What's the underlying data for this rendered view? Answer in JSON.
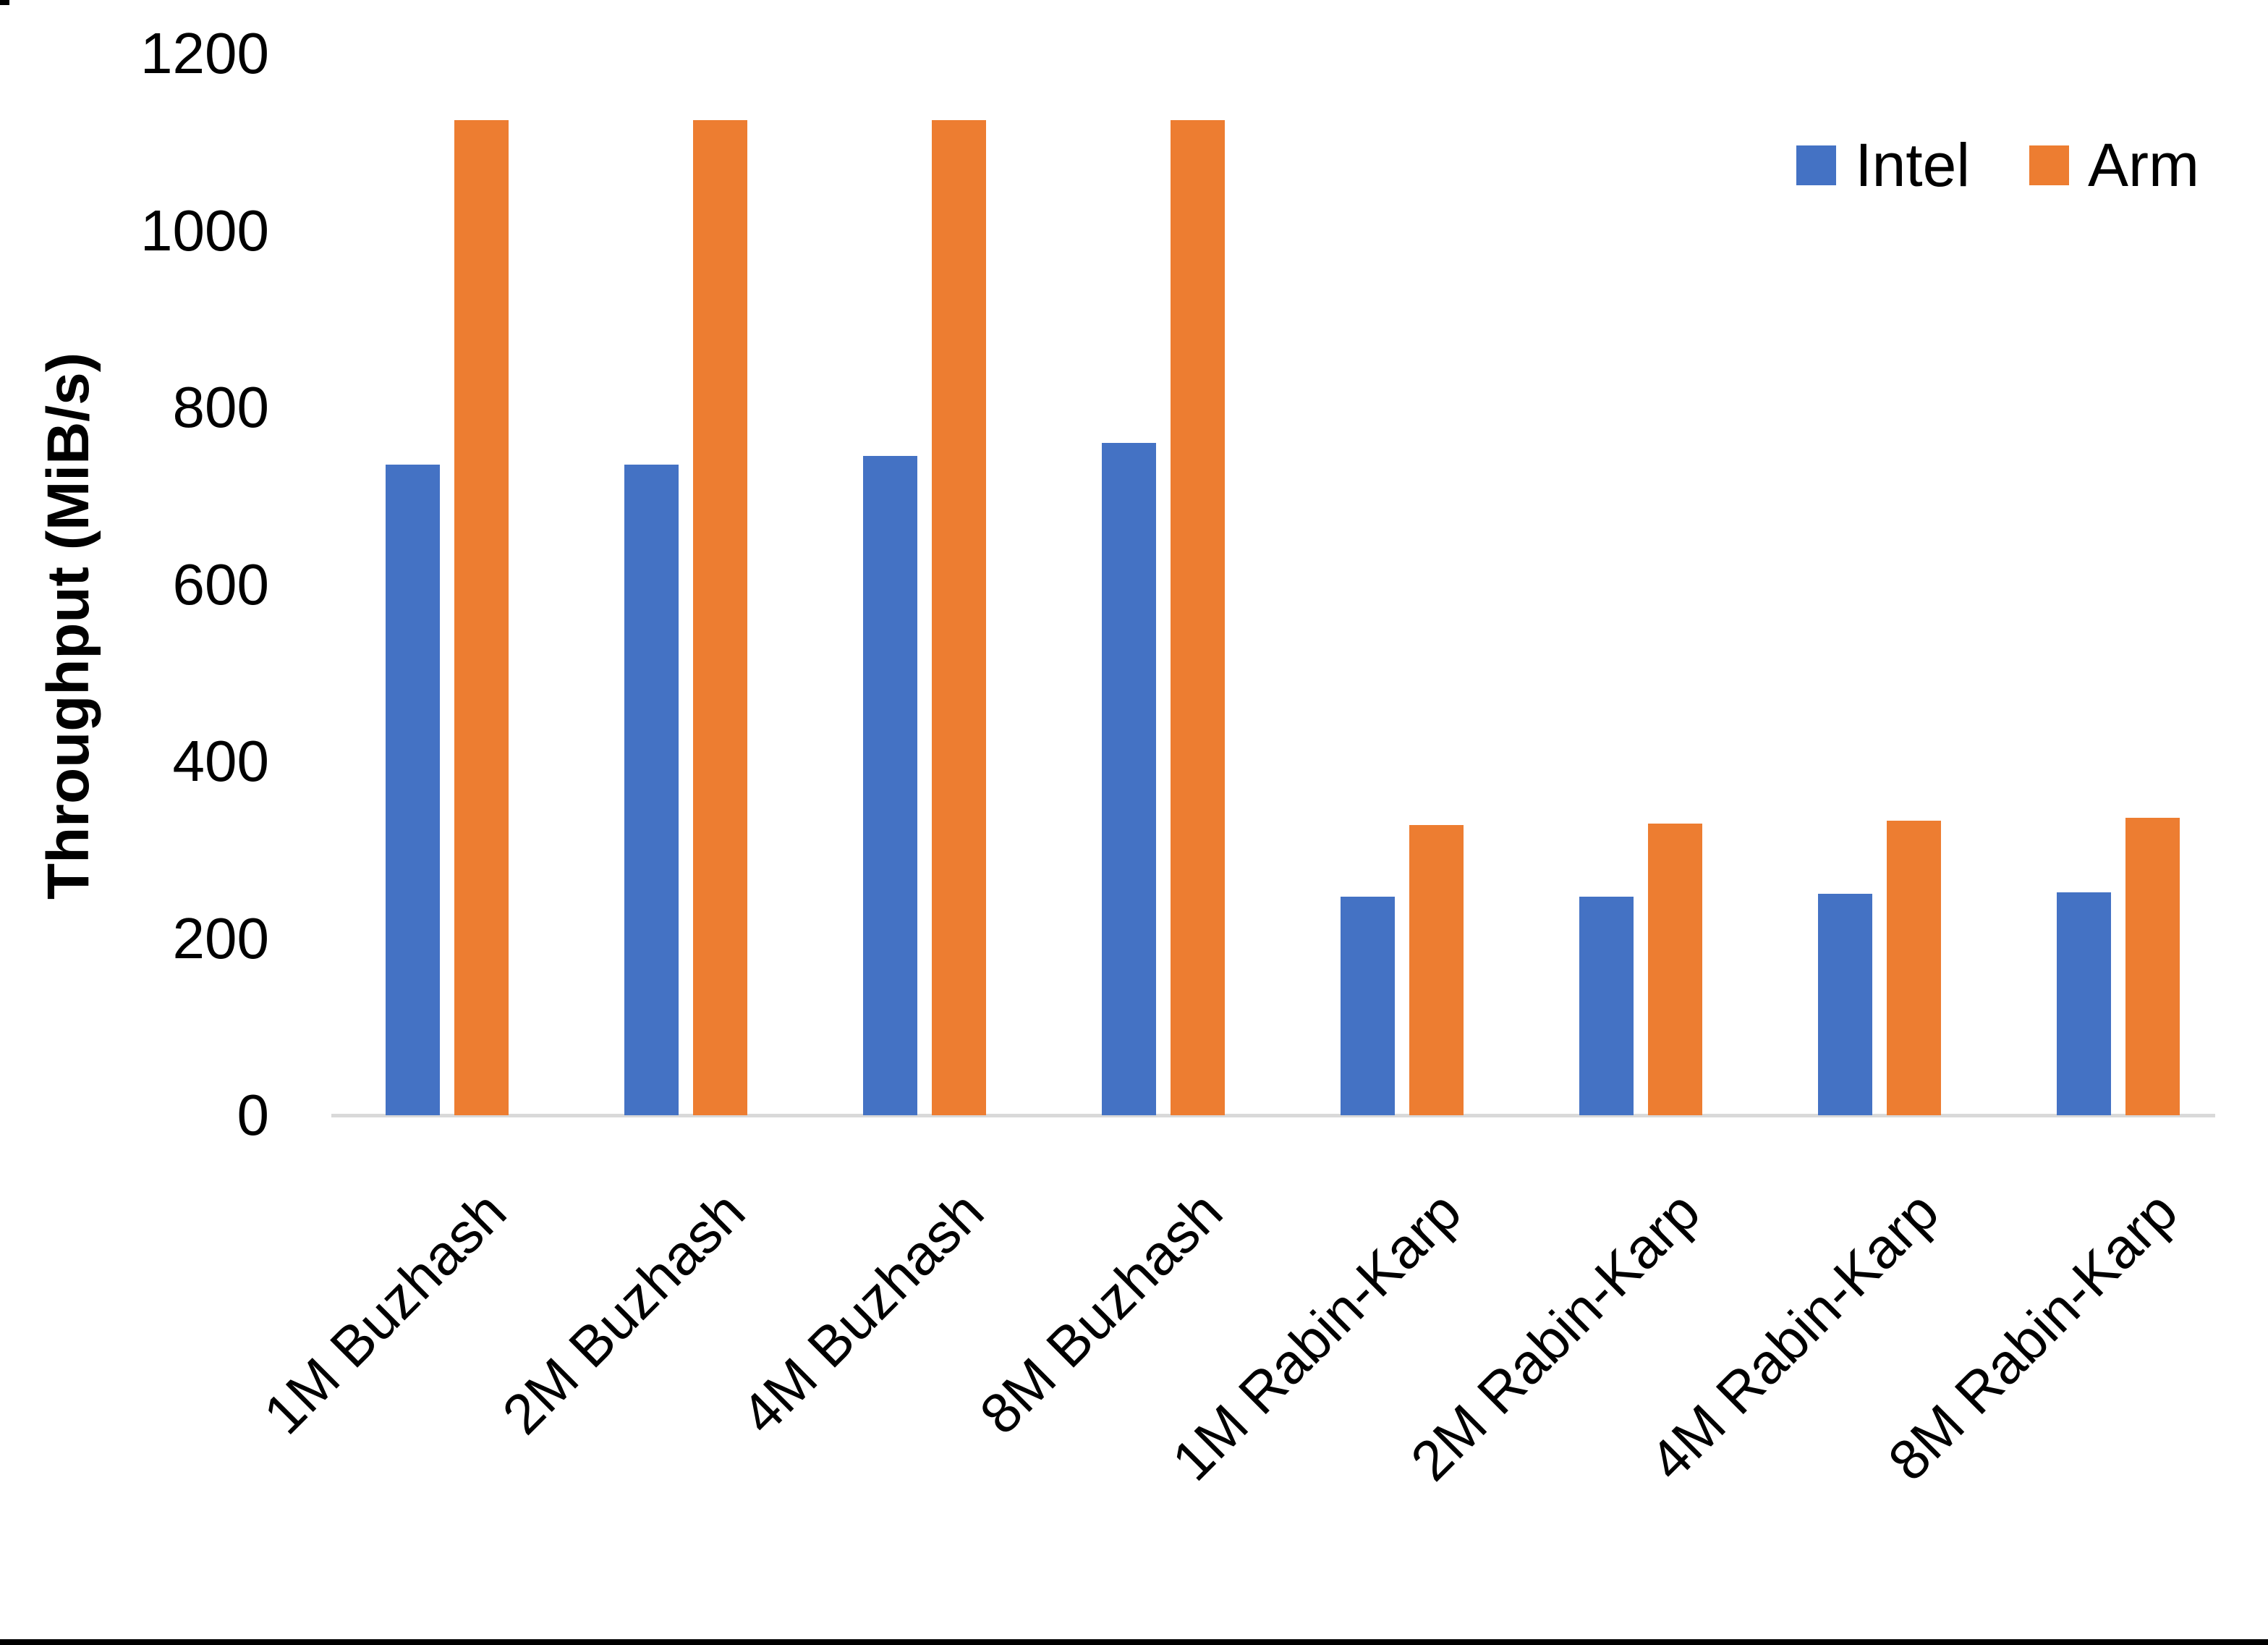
{
  "chart_data": {
    "type": "bar",
    "title": "",
    "ylabel": "Throughput (MiB/s)",
    "xlabel": "",
    "ylim": [
      0,
      1200
    ],
    "ytick_interval": 200,
    "ytick_labels": [
      "0",
      "200",
      "400",
      "600",
      "800",
      "1000",
      "1200"
    ],
    "grid": false,
    "legend_position": "top-right",
    "categories": [
      "1M Buzhash",
      "2M Buzhash",
      "4M Buzhash",
      "8M Buzhash",
      "1M Rabin-Karp",
      "2M Rabin-Karp",
      "4M Rabin-Karp",
      "8M Rabin-Karp"
    ],
    "series": [
      {
        "name": "Intel",
        "color": "#4472C4",
        "values": [
          735,
          735,
          745,
          760,
          247,
          247,
          250,
          252
        ]
      },
      {
        "name": "Arm",
        "color": "#ED7D31",
        "values": [
          1125,
          1125,
          1125,
          1125,
          328,
          330,
          333,
          336
        ]
      }
    ]
  },
  "style": {
    "intel_color": "#4472C4",
    "arm_color": "#ED7D31",
    "axis_line_color": "#D9D9D9",
    "text_color": "#000000",
    "background_color": "#ffffff"
  }
}
